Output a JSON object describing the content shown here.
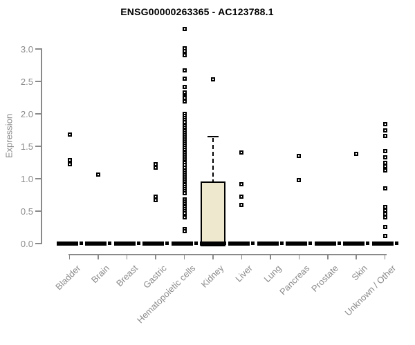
{
  "chart_data": {
    "type": "boxplot",
    "title": "ENSG00000263365 - AC123788.1",
    "xlabel": "",
    "ylabel": "Expression",
    "ylim": [
      0,
      3.4
    ],
    "yticks": [
      0.0,
      0.5,
      1.0,
      1.5,
      2.0,
      2.5,
      3.0
    ],
    "grid": false,
    "legend": false,
    "colors": {
      "axis": "#8a8a8a",
      "text": "#8a8a8a",
      "title": "#000000",
      "ink": "#000000",
      "box_fill": "#ede8ce",
      "point_fill": "#ffffff"
    },
    "categories": [
      "Bladder",
      "Brain",
      "Breast",
      "Gastric",
      "Hematopoietic cells",
      "Kidney",
      "Liver",
      "Lung",
      "Pancreas",
      "Prostate",
      "Skin",
      "Unknown / Other"
    ],
    "series": [
      {
        "points": [
          1.68,
          1.29,
          1.22
        ],
        "median": 0
      },
      {
        "points": [
          1.06
        ],
        "median": 0
      },
      {
        "points": [],
        "median": 0
      },
      {
        "points": [
          1.22,
          1.17,
          0.72,
          0.67
        ],
        "median": 0
      },
      {
        "points": [
          3.31,
          3.01,
          2.97,
          2.93,
          2.9,
          2.67,
          2.54,
          2.42,
          2.33,
          2.27,
          2.24,
          2.19,
          2.0,
          1.97,
          1.94,
          1.9,
          1.87,
          1.82,
          1.79,
          1.76,
          1.73,
          1.7,
          1.67,
          1.64,
          1.61,
          1.57,
          1.54,
          1.51,
          1.48,
          1.45,
          1.42,
          1.39,
          1.36,
          1.33,
          1.3,
          1.27,
          1.24,
          1.21,
          1.17,
          1.12,
          1.08,
          1.05,
          1.02,
          0.99,
          0.96,
          0.93,
          0.9,
          0.87,
          0.84,
          0.81,
          0.78,
          0.68,
          0.65,
          0.62,
          0.59,
          0.56,
          0.53,
          0.5,
          0.47,
          0.4,
          0.22,
          0.19
        ],
        "median": 0
      },
      {
        "points": [
          2.53
        ],
        "median": 0,
        "box": {
          "q1": 0,
          "median": 0,
          "q3": 0.96,
          "whisker_high": 1.65
        }
      },
      {
        "points": [
          1.4,
          0.92,
          0.72,
          0.6
        ],
        "median": 0
      },
      {
        "points": [],
        "median": 0
      },
      {
        "points": [
          1.35,
          0.98
        ],
        "median": 0
      },
      {
        "points": [],
        "median": 0
      },
      {
        "points": [
          1.38
        ],
        "median": 0
      },
      {
        "points": [
          1.84,
          1.74,
          1.66,
          1.43,
          1.33,
          1.24,
          1.19,
          1.13,
          0.85,
          0.56,
          0.51,
          0.46,
          0.4,
          0.26,
          0.12
        ],
        "median": 0
      }
    ]
  }
}
